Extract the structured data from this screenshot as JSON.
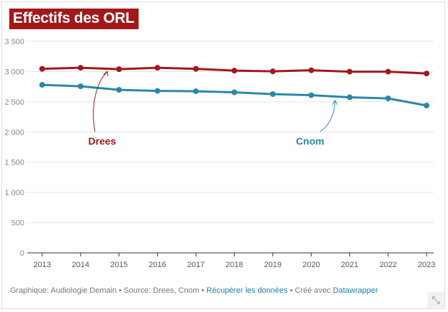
{
  "title": "Effectifs des ORL",
  "chart_data": {
    "type": "line",
    "title": "Effectifs des ORL",
    "x": [
      2013,
      2014,
      2015,
      2016,
      2017,
      2018,
      2019,
      2020,
      2021,
      2022,
      2023
    ],
    "ylim": [
      0,
      3500
    ],
    "yticks": [
      0,
      500,
      1000,
      1500,
      2000,
      2500,
      3000,
      3500
    ],
    "ytick_labels": [
      "0",
      "500",
      "1 000",
      "1 500",
      "2 000",
      "2 500",
      "3 000",
      "3 500"
    ],
    "grid": true,
    "series": [
      {
        "name": "Drees",
        "color": "#a3181b",
        "values": [
          3045,
          3062,
          3039,
          3062,
          3045,
          3015,
          3003,
          3021,
          2998,
          2998,
          2968
        ]
      },
      {
        "name": "Cnom",
        "color": "#2a88a8",
        "values": [
          2780,
          2756,
          2697,
          2680,
          2674,
          2656,
          2627,
          2609,
          2574,
          2556,
          2438
        ]
      }
    ]
  },
  "footer": {
    "credit": "Graphique: Audiologie Demain • Source: Drees, Cnom • ",
    "data_link": "Récupérer les données",
    "sep": " • Créé avec ",
    "tool_link": "Datawrapper"
  },
  "icons": {
    "resize": "resize-diagonal-icon"
  }
}
